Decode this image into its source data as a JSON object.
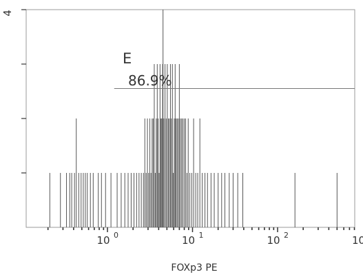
{
  "chart_data": {
    "type": "histogram",
    "xlabel": "FOXp3 PE",
    "ylabel": "",
    "x_scale": "log",
    "xlim": [
      0.1,
      1000
    ],
    "ylim": [
      0,
      4
    ],
    "x_ticks": [
      {
        "value": 1,
        "base": "10",
        "exp": "0"
      },
      {
        "value": 10,
        "base": "10",
        "exp": "1"
      },
      {
        "value": 100,
        "base": "10",
        "exp": "2"
      },
      {
        "value": 1000,
        "base": "10",
        "exp": ""
      }
    ],
    "y_ticks": [
      {
        "value": 4,
        "label": "4"
      },
      {
        "value": 3,
        "label": ""
      },
      {
        "value": 2,
        "label": ""
      },
      {
        "value": 1,
        "label": ""
      }
    ],
    "gate": {
      "label": "E",
      "percent": "86.9%",
      "x_range": [
        1.2,
        1000
      ],
      "y_level": 2.55
    },
    "marker_x": 4.5,
    "events": [
      {
        "x": 0.21,
        "y": 1
      },
      {
        "x": 0.28,
        "y": 1
      },
      {
        "x": 0.33,
        "y": 1
      },
      {
        "x": 0.36,
        "y": 1
      },
      {
        "x": 0.38,
        "y": 1
      },
      {
        "x": 0.41,
        "y": 1
      },
      {
        "x": 0.43,
        "y": 2
      },
      {
        "x": 0.46,
        "y": 1
      },
      {
        "x": 0.49,
        "y": 1
      },
      {
        "x": 0.52,
        "y": 1
      },
      {
        "x": 0.55,
        "y": 1
      },
      {
        "x": 0.58,
        "y": 1
      },
      {
        "x": 0.63,
        "y": 1
      },
      {
        "x": 0.68,
        "y": 1
      },
      {
        "x": 0.78,
        "y": 1
      },
      {
        "x": 0.85,
        "y": 1
      },
      {
        "x": 0.95,
        "y": 1
      },
      {
        "x": 1.1,
        "y": 1
      },
      {
        "x": 1.3,
        "y": 1
      },
      {
        "x": 1.45,
        "y": 1
      },
      {
        "x": 1.6,
        "y": 1
      },
      {
        "x": 1.75,
        "y": 1
      },
      {
        "x": 1.9,
        "y": 1
      },
      {
        "x": 2.05,
        "y": 1
      },
      {
        "x": 2.2,
        "y": 1
      },
      {
        "x": 2.35,
        "y": 1
      },
      {
        "x": 2.5,
        "y": 1
      },
      {
        "x": 2.65,
        "y": 1
      },
      {
        "x": 2.75,
        "y": 2
      },
      {
        "x": 2.85,
        "y": 1
      },
      {
        "x": 2.95,
        "y": 2
      },
      {
        "x": 3.05,
        "y": 1
      },
      {
        "x": 3.15,
        "y": 2
      },
      {
        "x": 3.25,
        "y": 1
      },
      {
        "x": 3.35,
        "y": 2
      },
      {
        "x": 3.45,
        "y": 2
      },
      {
        "x": 3.55,
        "y": 3
      },
      {
        "x": 3.65,
        "y": 1
      },
      {
        "x": 3.75,
        "y": 2
      },
      {
        "x": 3.85,
        "y": 3
      },
      {
        "x": 3.95,
        "y": 2
      },
      {
        "x": 4.05,
        "y": 1
      },
      {
        "x": 4.15,
        "y": 3
      },
      {
        "x": 4.25,
        "y": 2
      },
      {
        "x": 4.35,
        "y": 2
      },
      {
        "x": 4.45,
        "y": 3
      },
      {
        "x": 4.6,
        "y": 2
      },
      {
        "x": 4.75,
        "y": 3
      },
      {
        "x": 4.9,
        "y": 2
      },
      {
        "x": 5.05,
        "y": 3
      },
      {
        "x": 5.2,
        "y": 2
      },
      {
        "x": 5.35,
        "y": 2
      },
      {
        "x": 5.5,
        "y": 3
      },
      {
        "x": 5.65,
        "y": 2
      },
      {
        "x": 5.8,
        "y": 3
      },
      {
        "x": 5.95,
        "y": 1
      },
      {
        "x": 6.1,
        "y": 2
      },
      {
        "x": 6.25,
        "y": 3
      },
      {
        "x": 6.4,
        "y": 2
      },
      {
        "x": 6.6,
        "y": 2
      },
      {
        "x": 6.8,
        "y": 2
      },
      {
        "x": 7.0,
        "y": 3
      },
      {
        "x": 7.2,
        "y": 2
      },
      {
        "x": 7.45,
        "y": 2
      },
      {
        "x": 7.7,
        "y": 2
      },
      {
        "x": 8.0,
        "y": 2
      },
      {
        "x": 8.3,
        "y": 2
      },
      {
        "x": 8.6,
        "y": 1
      },
      {
        "x": 8.9,
        "y": 2
      },
      {
        "x": 9.3,
        "y": 1
      },
      {
        "x": 9.8,
        "y": 1
      },
      {
        "x": 10.3,
        "y": 2
      },
      {
        "x": 10.9,
        "y": 1
      },
      {
        "x": 11.5,
        "y": 1
      },
      {
        "x": 12.2,
        "y": 2
      },
      {
        "x": 13.0,
        "y": 1
      },
      {
        "x": 14.0,
        "y": 1
      },
      {
        "x": 15.0,
        "y": 1
      },
      {
        "x": 16.5,
        "y": 1
      },
      {
        "x": 18.0,
        "y": 1
      },
      {
        "x": 20.0,
        "y": 1
      },
      {
        "x": 22.0,
        "y": 1
      },
      {
        "x": 24.0,
        "y": 1
      },
      {
        "x": 27.0,
        "y": 1
      },
      {
        "x": 30.0,
        "y": 1
      },
      {
        "x": 34.0,
        "y": 1
      },
      {
        "x": 39.0,
        "y": 1
      },
      {
        "x": 160.0,
        "y": 1
      },
      {
        "x": 500.0,
        "y": 1
      }
    ]
  }
}
